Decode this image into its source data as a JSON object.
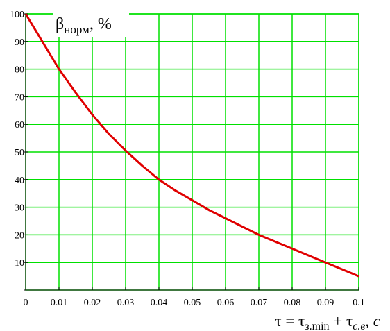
{
  "chart_data": {
    "type": "line",
    "ylabel_symbol": "β",
    "ylabel_subscript": "норм",
    "ylabel_unit": ", %",
    "xlabel_lhs": "τ = τ",
    "xlabel_sub1": "з.min",
    "xlabel_plus": " + τ",
    "xlabel_sub2": "с.в",
    "xlabel_unit": ", с",
    "xlim": [
      0,
      0.1
    ],
    "ylim": [
      0,
      100
    ],
    "x_ticks": [
      0,
      0.01,
      0.02,
      0.03,
      0.04,
      0.05,
      0.06,
      0.07,
      0.08,
      0.09,
      0.1
    ],
    "y_ticks": [
      10,
      20,
      30,
      40,
      50,
      60,
      70,
      80,
      90,
      100
    ],
    "grid": true,
    "grid_color": "#00e000",
    "series": [
      {
        "color": "#e00000",
        "x": [
          0,
          0.005,
          0.01,
          0.015,
          0.02,
          0.025,
          0.03,
          0.035,
          0.04,
          0.045,
          0.05,
          0.055,
          0.06,
          0.065,
          0.07,
          0.075,
          0.08,
          0.085,
          0.09,
          0.095,
          0.1
        ],
        "y": [
          100,
          90,
          80,
          71.5,
          63.5,
          56.5,
          50.5,
          45,
          40,
          36,
          32.5,
          29,
          26,
          23,
          20,
          17.5,
          15,
          12.5,
          10,
          7.5,
          5
        ]
      }
    ]
  }
}
